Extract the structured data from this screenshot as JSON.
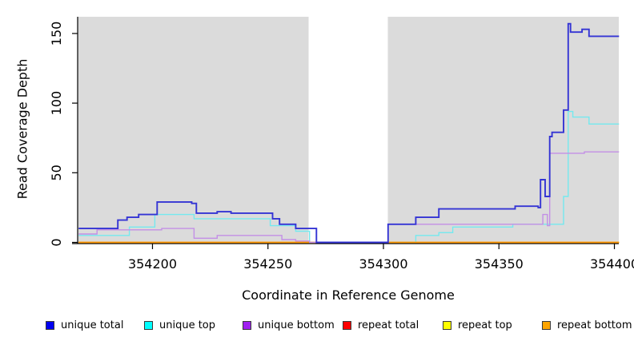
{
  "chart_data": {
    "type": "line",
    "step": true,
    "title": "",
    "xlabel": "Coordinate in Reference Genome",
    "ylabel": "Read Coverage Depth",
    "xlim": [
      354167.6,
      354401.9
    ],
    "ylim": [
      0,
      162
    ],
    "x_ticks": [
      354200,
      354250,
      354300,
      354350,
      354400
    ],
    "y_ticks": [
      0,
      50,
      100,
      150
    ],
    "grid": false,
    "legend_position": "bottom",
    "plot_background_color": "#dbdbdb",
    "gap_region": [
      354267.6,
      354301.9
    ],
    "shade_regions": [
      [
        354167.6,
        354267.6
      ],
      [
        354301.9,
        354401.9
      ]
    ],
    "draw_order": [
      3,
      4,
      1,
      5,
      2,
      0
    ],
    "series": [
      {
        "name": "unique total",
        "line_color": "#3434d4",
        "legend_color": "#0000f0",
        "line_width": 1.9,
        "points": [
          [
            354168,
            10
          ],
          [
            354185,
            16
          ],
          [
            354189,
            18
          ],
          [
            354194,
            20
          ],
          [
            354202,
            29
          ],
          [
            354217,
            28
          ],
          [
            354219,
            21
          ],
          [
            354228,
            22
          ],
          [
            354234,
            21
          ],
          [
            354252,
            17
          ],
          [
            354255,
            13
          ],
          [
            354262,
            10
          ],
          [
            354271,
            0
          ],
          [
            354302,
            13
          ],
          [
            354314,
            18
          ],
          [
            354324,
            24
          ],
          [
            354357,
            26
          ],
          [
            354367,
            25
          ],
          [
            354368,
            45
          ],
          [
            354370,
            33
          ],
          [
            354372,
            76
          ],
          [
            354373,
            79
          ],
          [
            354378,
            95
          ],
          [
            354380,
            157
          ],
          [
            354381,
            151
          ],
          [
            354386,
            153
          ],
          [
            354389,
            148
          ],
          [
            354402,
            148
          ]
        ]
      },
      {
        "name": "unique top",
        "line_color": "#74e9ef",
        "legend_color": "#00ffff",
        "line_width": 1.4,
        "points": [
          [
            354168,
            5
          ],
          [
            354190,
            11
          ],
          [
            354201,
            20
          ],
          [
            354218,
            17
          ],
          [
            354251,
            12
          ],
          [
            354262,
            8
          ],
          [
            354268,
            0
          ],
          [
            354314,
            5
          ],
          [
            354324,
            7
          ],
          [
            354330,
            11
          ],
          [
            354356,
            13
          ],
          [
            354378,
            33
          ],
          [
            354380,
            94
          ],
          [
            354382,
            90
          ],
          [
            354389,
            85
          ],
          [
            354402,
            85
          ]
        ]
      },
      {
        "name": "unique bottom",
        "line_color": "#c38fe6",
        "legend_color": "#a020f0",
        "line_width": 1.4,
        "points": [
          [
            354168,
            6
          ],
          [
            354176,
            9
          ],
          [
            354204,
            10
          ],
          [
            354218,
            3
          ],
          [
            354228,
            5
          ],
          [
            354256,
            2
          ],
          [
            354262,
            1
          ],
          [
            354268,
            0
          ],
          [
            354302,
            13
          ],
          [
            354369,
            20
          ],
          [
            354371,
            12
          ],
          [
            354372,
            64
          ],
          [
            354387,
            65
          ],
          [
            354402,
            65
          ]
        ]
      },
      {
        "name": "repeat total",
        "line_color": "#e03030",
        "legend_color": "#ff0000",
        "line_width": 1.2,
        "points": [
          [
            354168,
            0
          ],
          [
            354402,
            0
          ]
        ]
      },
      {
        "name": "repeat top",
        "line_color": "#f2f200",
        "legend_color": "#ffff00",
        "line_width": 1.2,
        "points": [
          [
            354168,
            0
          ],
          [
            354402,
            0
          ]
        ]
      },
      {
        "name": "repeat bottom",
        "line_color": "#ff9700",
        "legend_color": "#ffa500",
        "line_width": 1.7,
        "points": [
          [
            354168,
            0
          ],
          [
            354402,
            0
          ]
        ]
      }
    ]
  },
  "legend": {
    "items": [
      {
        "label": "unique total"
      },
      {
        "label": "unique top"
      },
      {
        "label": "unique bottom"
      },
      {
        "label": "repeat total"
      },
      {
        "label": "repeat top"
      },
      {
        "label": "repeat bottom"
      }
    ]
  }
}
